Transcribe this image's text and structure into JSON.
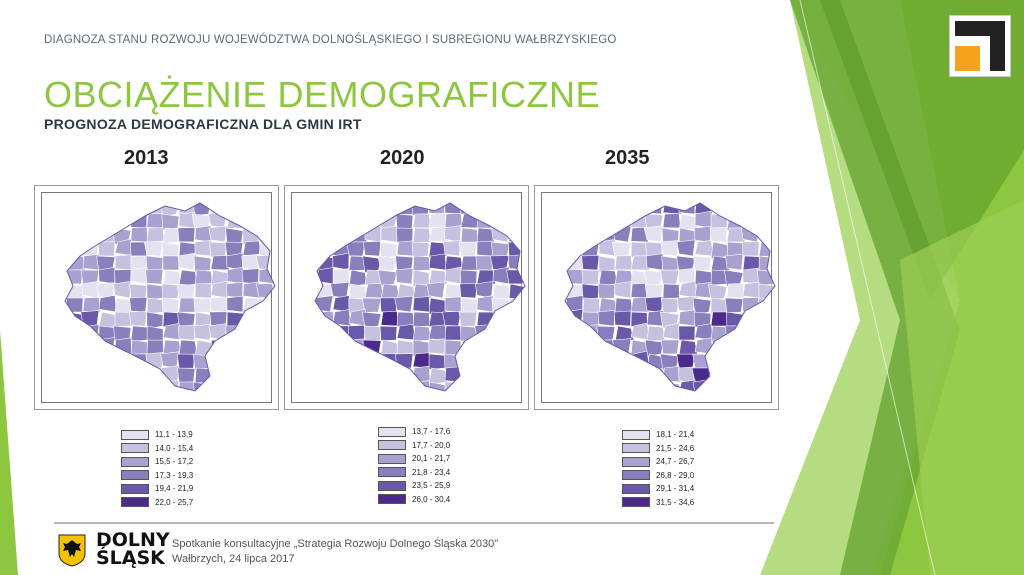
{
  "header": {
    "top_line": "DIAGNOZA  STANU ROZWOJU WOJEWÓDZTWA DOLNOŚLĄSKIEGO I SUBREGIONU WAŁBRZYSKIEGO",
    "title": "OBCIĄŻENIE DEMOGRAFICZNE",
    "subtitle": "PROGNOZA DEMOGRAFICZNA DLA GMIN IRT"
  },
  "maps": [
    {
      "year": "2013",
      "legend": [
        "11,1 - 13,9",
        "14,0 - 15,4",
        "15,5 - 17,2",
        "17,3 - 19,3",
        "19,4 - 21,9",
        "22,0 - 25,7"
      ]
    },
    {
      "year": "2020",
      "legend": [
        "13,7 - 17,6",
        "17,7 - 20,0",
        "20,1 - 21,7",
        "21,8 - 23,4",
        "23,5 - 25,9",
        "26,0 - 30,4"
      ]
    },
    {
      "year": "2035",
      "legend": [
        "18,1 - 21,4",
        "21,5 - 24,6",
        "24,7 - 26,7",
        "26,8 - 29,0",
        "29,1 - 31,4",
        "31,5 - 34,6"
      ]
    }
  ],
  "legend_colors": [
    "#e4e2f0",
    "#c6c1df",
    "#a9a1cf",
    "#8a7fbd",
    "#6a58a8",
    "#4a2a8a"
  ],
  "footer": {
    "logo_line1": "DOLNY",
    "logo_line2": "ŚLĄSK",
    "event": "Spotkanie konsultacyjne „Strategia Rozwoju Dolnego Śląska 2030\"",
    "place_date": "Wałbrzych, 24 lipca 2017"
  },
  "colors": {
    "accent_green": "#8dc63f",
    "dark_green": "#5e9a2a",
    "logo_orange": "#f5a31a"
  }
}
